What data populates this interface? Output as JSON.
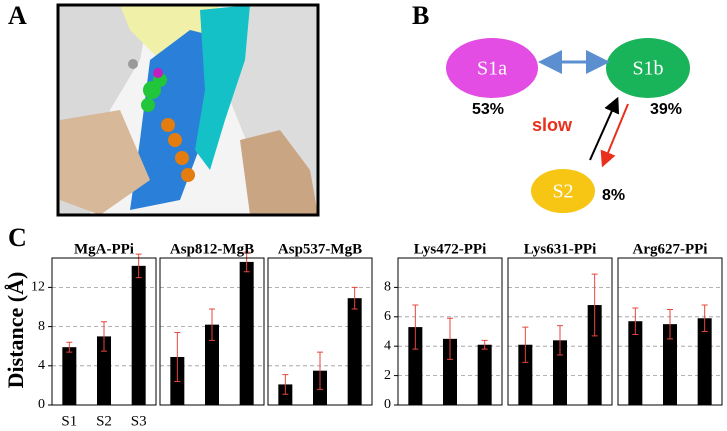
{
  "panel_labels": [
    "A",
    "B",
    "C"
  ],
  "diagram": {
    "nodes": [
      {
        "label": "S1a",
        "share": "53%"
      },
      {
        "label": "S1b",
        "share": "39%"
      },
      {
        "label": "S2",
        "share": "8%"
      }
    ],
    "arrow_label": "slow"
  },
  "chart_data": [
    {
      "type": "bar",
      "title": "MgA-PPi",
      "ylabel": "Distance (Å)",
      "categories": [
        "S1",
        "S2",
        "S3"
      ],
      "values": [
        5.9,
        7.0,
        14.2
      ],
      "errors": [
        0.5,
        1.5,
        1.2
      ],
      "color": "#000000",
      "error_color": "#e8453c",
      "ylim": [
        0,
        15
      ],
      "yticks": [
        0,
        4,
        8,
        12
      ],
      "ytick_labels": true,
      "grid": true
    },
    {
      "type": "bar",
      "title": "Asp812-MgB",
      "categories": [
        null,
        null,
        null
      ],
      "values": [
        4.9,
        8.2,
        14.6
      ],
      "errors": [
        2.5,
        1.6,
        1.0
      ],
      "color": "#000000",
      "error_color": "#e8453c",
      "ylim": [
        0,
        15
      ],
      "yticks": [
        0,
        4,
        8,
        12
      ],
      "ytick_labels": false,
      "grid": true
    },
    {
      "type": "bar",
      "title": "Asp537-MgB",
      "categories": [
        null,
        null,
        null
      ],
      "values": [
        2.1,
        3.5,
        10.9
      ],
      "errors": [
        1.0,
        1.9,
        1.1
      ],
      "color": "#000000",
      "error_color": "#e8453c",
      "ylim": [
        0,
        15
      ],
      "yticks": [
        0,
        4,
        8,
        12
      ],
      "ytick_labels": false,
      "grid": true
    },
    {
      "type": "bar",
      "title": "Lys472-PPi",
      "categories": [
        null,
        null,
        null
      ],
      "values": [
        5.3,
        4.5,
        4.1
      ],
      "errors": [
        1.5,
        1.4,
        0.3
      ],
      "color": "#000000",
      "error_color": "#e8453c",
      "ylim": [
        0,
        10
      ],
      "yticks": [
        0,
        2,
        4,
        6,
        8
      ],
      "ytick_labels": true,
      "grid": true
    },
    {
      "type": "bar",
      "title": "Lys631-PPi",
      "categories": [
        null,
        null,
        null
      ],
      "values": [
        4.1,
        4.4,
        6.8
      ],
      "errors": [
        1.2,
        1.0,
        2.1
      ],
      "color": "#000000",
      "error_color": "#e8453c",
      "ylim": [
        0,
        10
      ],
      "yticks": [
        0,
        2,
        4,
        6,
        8
      ],
      "ytick_labels": false,
      "grid": true
    },
    {
      "type": "bar",
      "title": "Arg627-PPi",
      "categories": [
        null,
        null,
        null
      ],
      "values": [
        5.7,
        5.5,
        5.9
      ],
      "errors": [
        0.9,
        1.0,
        0.9
      ],
      "color": "#000000",
      "error_color": "#e8453c",
      "ylim": [
        0,
        10
      ],
      "yticks": [
        0,
        2,
        4,
        6,
        8
      ],
      "ytick_labels": false,
      "grid": true
    }
  ]
}
